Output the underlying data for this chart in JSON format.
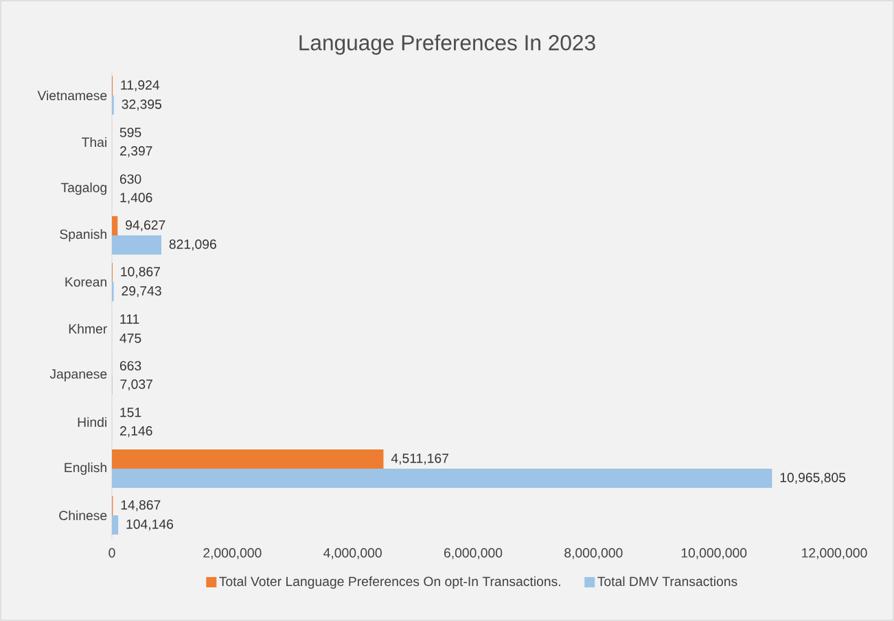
{
  "chart_data": {
    "type": "bar",
    "orientation": "horizontal",
    "title": "Language Preferences In 2023",
    "categories": [
      "Vietnamese",
      "Thai",
      "Tagalog",
      "Spanish",
      "Korean",
      "Khmer",
      "Japanese",
      "Hindi",
      "English",
      "Chinese"
    ],
    "series": [
      {
        "name": "Total Voter Language Preferences On opt-In Transactions.",
        "color": "#ed7d31",
        "values": [
          11924,
          595,
          630,
          94627,
          10867,
          111,
          663,
          151,
          4511167,
          14867
        ],
        "value_labels": [
          "11,924",
          "595",
          "630",
          "94,627",
          "10,867",
          "111",
          "663",
          "151",
          "4,511,167",
          "14,867"
        ]
      },
      {
        "name": "Total DMV Transactions",
        "color": "#9dc3e6",
        "values": [
          32395,
          2397,
          1406,
          821096,
          29743,
          475,
          7037,
          2146,
          10965805,
          104146
        ],
        "value_labels": [
          "32,395",
          "2,397",
          "1,406",
          "821,096",
          "29,743",
          "475",
          "7,037",
          "2,146",
          "10,965,805",
          "104,146"
        ]
      }
    ],
    "xlim": [
      0,
      12000000
    ],
    "xticks": [
      0,
      {
        "value": 2000000,
        "label": "2,000,000"
      },
      {
        "value": 4000000,
        "label": "4,000,000"
      },
      {
        "value": 6000000,
        "label": "6,000,000"
      },
      {
        "value": 8000000,
        "label": "8,000,000"
      },
      {
        "value": 10000000,
        "label": "10,000,000"
      },
      {
        "value": 12000000,
        "label": "12,000,000"
      }
    ],
    "legend": "bottom"
  }
}
